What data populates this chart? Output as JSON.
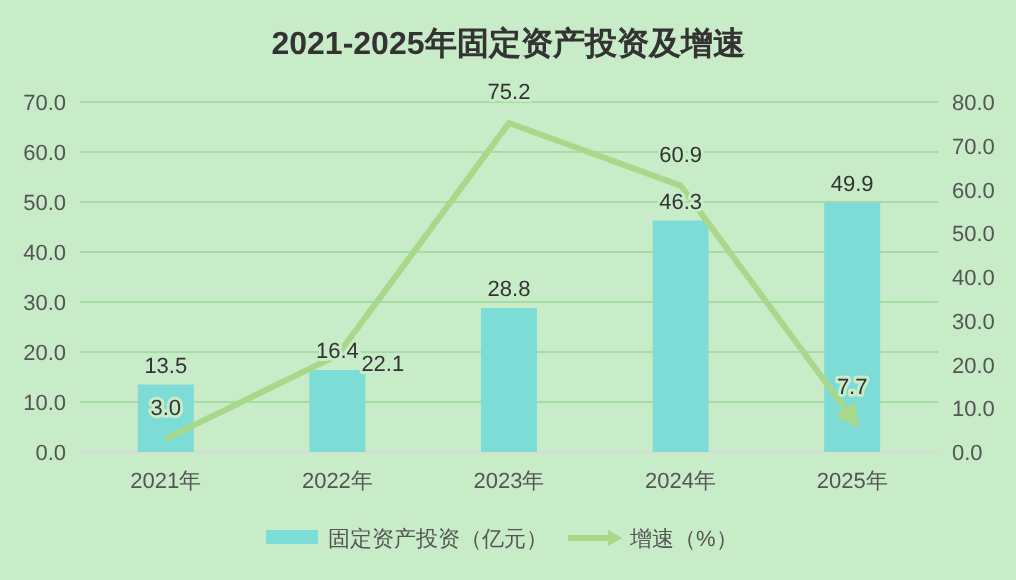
{
  "chart_data": {
    "type": "bar",
    "title": "2021-2025年固定资产投资及增速",
    "categories": [
      "2021年",
      "2022年",
      "2023年",
      "2024年",
      "2025年"
    ],
    "series": [
      {
        "name": "固定资产投资（亿元）",
        "color": "#7edcd6",
        "values": [
          13.5,
          16.4,
          28.8,
          46.3,
          49.9
        ]
      },
      {
        "name": "增速（%）",
        "type": "line",
        "axis": "y2",
        "color": "#a8d88a",
        "values": [
          3.0,
          22.1,
          75.2,
          60.9,
          7.7
        ],
        "value_labels": [
          "3.0",
          "22.1",
          "75.2",
          "60.9",
          "7.7"
        ]
      }
    ],
    "ylim": [
      0,
      70
    ],
    "yticks": [
      {
        "value": 0,
        "label": "0.0"
      },
      {
        "value": 10,
        "label": "10.0"
      },
      {
        "value": 20,
        "label": "20.0"
      },
      {
        "value": 30,
        "label": "30.0"
      },
      {
        "value": 40,
        "label": "40.0"
      },
      {
        "value": 50,
        "label": "50.0"
      },
      {
        "value": 60,
        "label": "60.0"
      },
      {
        "value": 70,
        "label": "70.0"
      }
    ],
    "y2lim": [
      0,
      80
    ],
    "y2ticks": [
      {
        "value": 0,
        "label": "0.0"
      },
      {
        "value": 10,
        "label": "10.0"
      },
      {
        "value": 20,
        "label": "20.0"
      },
      {
        "value": 30,
        "label": "30.0"
      },
      {
        "value": 40,
        "label": "40.0"
      },
      {
        "value": 50,
        "label": "50.0"
      },
      {
        "value": 60,
        "label": "60.0"
      },
      {
        "value": 70,
        "label": "70.0"
      },
      {
        "value": 80,
        "label": "80.0"
      }
    ],
    "grid": "y",
    "legend": "bottom",
    "data_labels": true
  }
}
